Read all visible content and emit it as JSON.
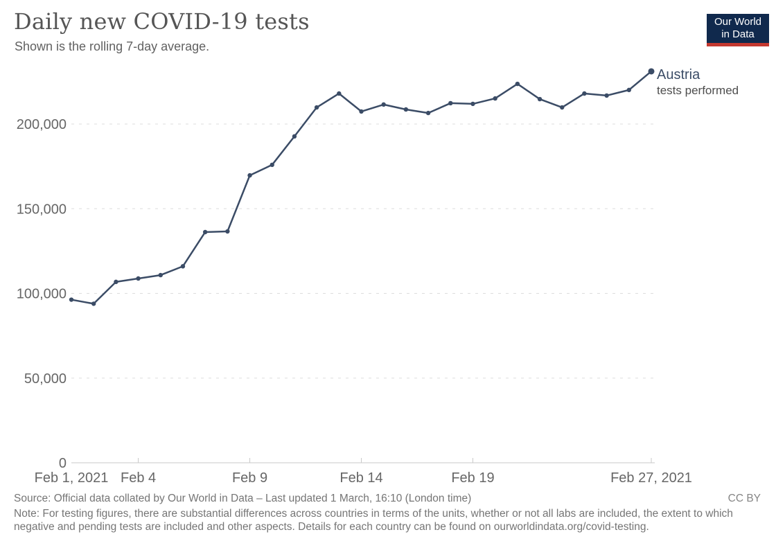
{
  "header": {
    "title": "Daily new COVID-19 tests",
    "subtitle": "Shown is the rolling 7-day average."
  },
  "logo": {
    "line1": "Our World",
    "line2": "in Data",
    "bg_color": "#10294D",
    "bar_color": "#C4382F"
  },
  "chart_data": {
    "type": "line",
    "title": "Daily new COVID-19 tests",
    "subtitle": "Shown is the rolling 7-day average.",
    "grid": true,
    "legend_position": "end-of-line",
    "xlabel": "",
    "ylabel": "",
    "ylim": [
      0,
      236000
    ],
    "x": [
      "Feb 1, 2021",
      "Feb 2",
      "Feb 3",
      "Feb 4",
      "Feb 5",
      "Feb 6",
      "Feb 7",
      "Feb 8",
      "Feb 9",
      "Feb 10",
      "Feb 11",
      "Feb 12",
      "Feb 13",
      "Feb 14",
      "Feb 15",
      "Feb 16",
      "Feb 17",
      "Feb 18",
      "Feb 19",
      "Feb 20",
      "Feb 21",
      "Feb 22",
      "Feb 23",
      "Feb 24",
      "Feb 25",
      "Feb 26",
      "Feb 27, 2021"
    ],
    "series": [
      {
        "name": "Austria",
        "label": "tests performed",
        "color": "#3B4C66",
        "values": [
          96300,
          93900,
          106800,
          108800,
          110800,
          116000,
          136200,
          136600,
          169700,
          175900,
          192700,
          209800,
          218000,
          207400,
          211500,
          208600,
          206500,
          212300,
          211900,
          215100,
          223700,
          214700,
          209800,
          218000,
          216800,
          220100,
          231100
        ]
      }
    ],
    "y_axis": {
      "ticks": [
        {
          "value": 0,
          "label": "0"
        },
        {
          "value": 50000,
          "label": "50,000"
        },
        {
          "value": 100000,
          "label": "100,000"
        },
        {
          "value": 150000,
          "label": "150,000"
        },
        {
          "value": 200000,
          "label": "200,000"
        }
      ]
    },
    "x_axis": {
      "ticks": [
        {
          "i": 0,
          "label": "Feb 1, 2021"
        },
        {
          "i": 3,
          "label": "Feb 4"
        },
        {
          "i": 8,
          "label": "Feb 9"
        },
        {
          "i": 13,
          "label": "Feb 14"
        },
        {
          "i": 18,
          "label": "Feb 19"
        },
        {
          "i": 26,
          "label": "Feb 27, 2021"
        }
      ]
    },
    "colors": {
      "gridline": "#dddddd",
      "axis_line": "#c8c8c8",
      "axis_text": "#666666"
    }
  },
  "footer": {
    "source": "Source: Official data collated by Our World in Data – Last updated 1 March, 16:10 (London time)",
    "license": "CC BY",
    "note": "Note: For testing figures, there are substantial differences across countries in terms of the units, whether or not all labs are included, the extent to which negative and pending tests are included and other aspects. Details for each country can be found on ourworldindata.org/covid-testing."
  }
}
